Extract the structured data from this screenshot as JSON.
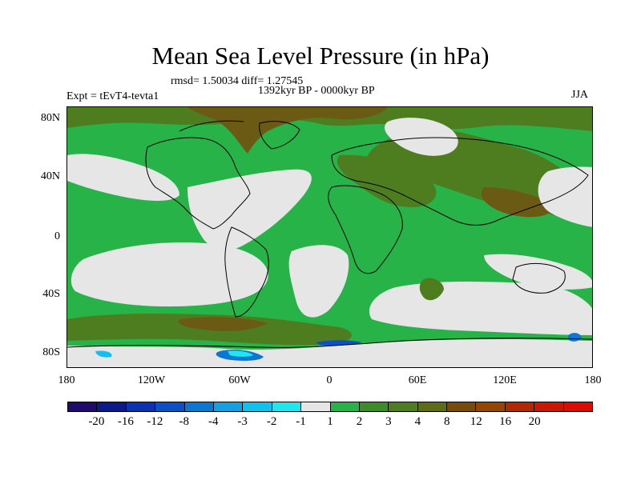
{
  "title": "Mean Sea Level Pressure (in hPa)",
  "stats": "rmsd= 1.50034 diff= 1.27545",
  "period": "1392kyr BP - 0000kyr BP",
  "experiment": "Expt = tEvT4-tevta1",
  "season": "JJA",
  "lat_labels": [
    "80N",
    "40N",
    "0",
    "40S",
    "80S"
  ],
  "lon_labels": [
    "180",
    "120W",
    "60W",
    "0",
    "60E",
    "120E",
    "180"
  ],
  "colorbar": {
    "colors": [
      "#1f0a6e",
      "#0a1a8c",
      "#0a32b4",
      "#0a50c8",
      "#0a78d2",
      "#14a0e6",
      "#10c0f0",
      "#20e6f0",
      "#e6e6e6",
      "#27b347",
      "#3c8c28",
      "#4e7d20",
      "#5e6c14",
      "#7a4a0a",
      "#964600",
      "#b42800",
      "#c81800",
      "#dc0c00"
    ],
    "labels": [
      "-20",
      "-16",
      "-12",
      "-8",
      "-4",
      "-3",
      "-2",
      "-1",
      "1",
      "2",
      "3",
      "4",
      "8",
      "12",
      "16",
      "20"
    ]
  },
  "palette": {
    "green": "#27b347",
    "grey": "#e6e6e6",
    "olive": "#4e7d20",
    "brown": "#6b5a14",
    "blue": "#0a78d2",
    "cyan": "#20e6f0"
  }
}
